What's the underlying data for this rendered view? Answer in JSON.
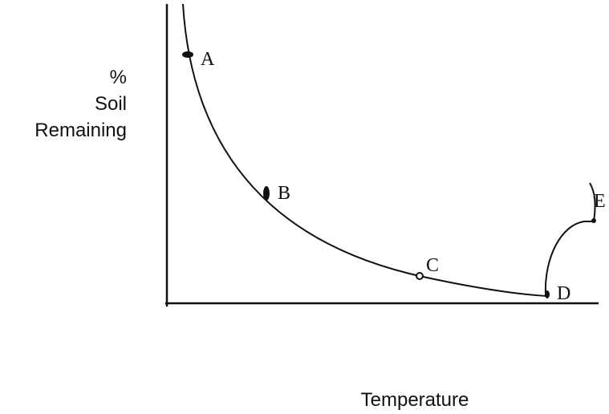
{
  "axes": {
    "y_label": [
      "%",
      "Soil",
      "Remaining"
    ],
    "x_label": "Temperature"
  },
  "points": [
    {
      "label": "A"
    },
    {
      "label": "B"
    },
    {
      "label": "C"
    },
    {
      "label": "D"
    },
    {
      "label": "E"
    }
  ]
}
